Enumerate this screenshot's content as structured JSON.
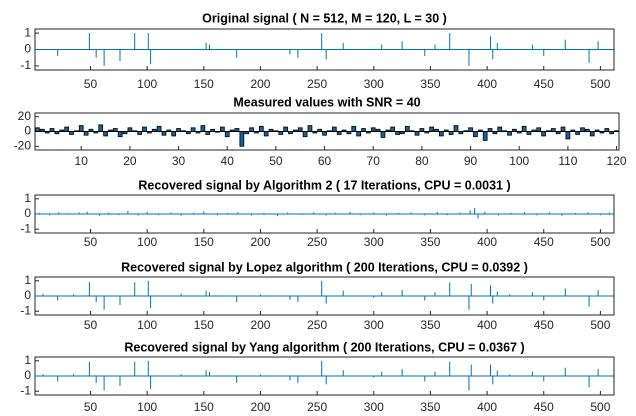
{
  "chart_data": [
    {
      "type": "stem",
      "title": "Original signal ( N = 512, M = 120, L = 30 )",
      "color": "#0072bd",
      "x": [
        21,
        49,
        55,
        62,
        76,
        89,
        101,
        103,
        152,
        155,
        179,
        226,
        233,
        254,
        258,
        273,
        307,
        325,
        345,
        354,
        367,
        384,
        403,
        405,
        409,
        440,
        450,
        469,
        490,
        498
      ],
      "values": [
        -0.4,
        1,
        -0.5,
        -1,
        -0.7,
        1,
        1,
        -0.9,
        0.4,
        0.3,
        -0.5,
        -0.3,
        -0.5,
        1,
        -0.6,
        0.4,
        0.3,
        0.5,
        -0.4,
        0.3,
        1,
        -1,
        0.8,
        -0.6,
        0.4,
        0.3,
        -0.4,
        0.6,
        -0.8,
        0.5
      ],
      "xlim": [
        1,
        512
      ],
      "ylim": [
        -1.25,
        1.25
      ],
      "xticks": [
        50,
        100,
        150,
        200,
        250,
        300,
        350,
        400,
        450,
        500
      ],
      "yticks": [
        1,
        0,
        -1
      ]
    },
    {
      "type": "bar",
      "title": "Measured values with SNR = 40",
      "color": "#1a5f96",
      "x": [
        1,
        2,
        3,
        4,
        5,
        6,
        7,
        8,
        9,
        10,
        11,
        12,
        13,
        14,
        15,
        16,
        17,
        18,
        19,
        20,
        21,
        22,
        23,
        24,
        25,
        26,
        27,
        28,
        29,
        30,
        31,
        32,
        33,
        34,
        35,
        36,
        37,
        38,
        39,
        40,
        41,
        42,
        43,
        44,
        45,
        46,
        47,
        48,
        49,
        50,
        51,
        52,
        53,
        54,
        55,
        56,
        57,
        58,
        59,
        60,
        61,
        62,
        63,
        64,
        65,
        66,
        67,
        68,
        69,
        70,
        71,
        72,
        73,
        74,
        75,
        76,
        77,
        78,
        79,
        80,
        81,
        82,
        83,
        84,
        85,
        86,
        87,
        88,
        89,
        90,
        91,
        92,
        93,
        94,
        95,
        96,
        97,
        98,
        99,
        100,
        101,
        102,
        103,
        104,
        105,
        106,
        107,
        108,
        109,
        110,
        111,
        112,
        113,
        114,
        115,
        116,
        117,
        118,
        119,
        120
      ],
      "values": [
        5,
        3,
        -2,
        4,
        -3,
        2,
        6,
        -4,
        1,
        8,
        -5,
        3,
        -2,
        9,
        -6,
        2,
        4,
        -7,
        -3,
        5,
        1,
        -4,
        6,
        -2,
        3,
        7,
        -5,
        2,
        -6,
        4,
        1,
        -3,
        5,
        -2,
        8,
        -4,
        3,
        -1,
        6,
        -7,
        2,
        4,
        -20,
        -3,
        5,
        -2,
        7,
        -6,
        3,
        1,
        -4,
        6,
        -3,
        2,
        5,
        -7,
        8,
        -2,
        3,
        -5,
        1,
        6,
        -4,
        2,
        -3,
        7,
        -6,
        4,
        -2,
        5,
        3,
        -8,
        2,
        6,
        -4,
        -3,
        7,
        1,
        -5,
        4,
        -2,
        6,
        3,
        -6,
        2,
        -4,
        8,
        -3,
        1,
        5,
        -7,
        2,
        -12,
        4,
        -3,
        6,
        1,
        -5,
        3,
        -2,
        7,
        -4,
        2,
        5,
        -6,
        1,
        4,
        -3,
        6,
        -10,
        2,
        -4,
        5,
        3,
        -6,
        2,
        -2,
        4,
        -3,
        1
      ],
      "xlim": [
        0.5,
        120.5
      ],
      "ylim": [
        -25,
        25
      ],
      "xticks": [
        10,
        20,
        30,
        40,
        50,
        60,
        70,
        80,
        90,
        100,
        110,
        120
      ],
      "yticks": [
        20,
        0,
        -20
      ]
    },
    {
      "type": "stem",
      "title": "Recovered signal by Algorithm 2 ( 17 Iterations, CPU = 0.0031 )",
      "color": "#0072bd",
      "x": [
        5,
        14,
        22,
        31,
        40,
        47,
        58,
        66,
        75,
        83,
        92,
        100,
        110,
        121,
        130,
        141,
        150,
        162,
        171,
        180,
        192,
        203,
        215,
        224,
        236,
        247,
        258,
        266,
        279,
        288,
        300,
        311,
        322,
        333,
        345,
        356,
        365,
        376,
        385,
        389,
        392,
        398,
        410,
        421,
        433,
        444,
        455,
        466,
        478,
        489,
        500,
        508
      ],
      "values": [
        0.08,
        -0.1,
        0.12,
        -0.06,
        0.1,
        0.15,
        -0.12,
        0.09,
        -0.08,
        0.2,
        -0.1,
        0.14,
        -0.07,
        0.1,
        -0.12,
        0.08,
        0.16,
        -0.09,
        0.07,
        0.12,
        -0.1,
        0.08,
        -0.14,
        0.1,
        -0.06,
        0.12,
        -0.1,
        0.09,
        0.14,
        -0.08,
        0.1,
        -0.12,
        0.07,
        0.1,
        -0.09,
        0.13,
        -0.07,
        0.1,
        0.25,
        0.4,
        -0.3,
        0.15,
        -0.1,
        0.08,
        0.12,
        -0.09,
        0.1,
        -0.12,
        0.07,
        0.11,
        -0.08,
        0.09
      ],
      "xlim": [
        1,
        512
      ],
      "ylim": [
        -1.25,
        1.25
      ],
      "xticks": [
        50,
        100,
        150,
        200,
        250,
        300,
        350,
        400,
        450,
        500
      ],
      "yticks": [
        1,
        0,
        -1
      ]
    },
    {
      "type": "stem",
      "title": "Recovered signal by Lopez algorithm ( 200 Iterations, CPU = 0.0392 )",
      "color": "#0072bd",
      "x": [
        8,
        21,
        35,
        49,
        55,
        62,
        76,
        89,
        101,
        103,
        130,
        152,
        155,
        179,
        200,
        226,
        233,
        254,
        258,
        273,
        300,
        307,
        325,
        345,
        354,
        367,
        384,
        386,
        403,
        405,
        409,
        420,
        440,
        450,
        469,
        490,
        498
      ],
      "values": [
        0.15,
        -0.3,
        0.1,
        0.9,
        -0.4,
        -0.9,
        -0.6,
        0.9,
        1,
        -0.8,
        0.15,
        0.35,
        0.25,
        -0.4,
        0.1,
        -0.25,
        -0.4,
        1,
        -0.5,
        0.35,
        -0.12,
        0.25,
        0.4,
        -0.3,
        0.25,
        0.9,
        -0.9,
        0.8,
        0.7,
        -0.5,
        0.3,
        0.12,
        0.25,
        -0.3,
        0.5,
        -0.7,
        0.4
      ],
      "xlim": [
        1,
        512
      ],
      "ylim": [
        -1.25,
        1.25
      ],
      "xticks": [
        50,
        100,
        150,
        200,
        250,
        300,
        350,
        400,
        450,
        500
      ],
      "yticks": [
        1,
        0,
        -1
      ]
    },
    {
      "type": "stem",
      "title": "Recovered signal by Yang algorithm ( 200 Iterations, CPU = 0.0367 )",
      "color": "#0072bd",
      "x": [
        8,
        21,
        35,
        49,
        55,
        62,
        76,
        89,
        101,
        103,
        130,
        152,
        155,
        179,
        200,
        226,
        233,
        254,
        258,
        273,
        300,
        307,
        325,
        345,
        354,
        367,
        384,
        386,
        403,
        405,
        409,
        420,
        440,
        450,
        469,
        490,
        498
      ],
      "values": [
        0.12,
        -0.35,
        0.12,
        0.95,
        -0.45,
        -0.95,
        -0.65,
        0.95,
        1,
        -0.85,
        0.12,
        0.38,
        0.28,
        -0.45,
        0.1,
        -0.28,
        -0.45,
        1,
        -0.55,
        0.38,
        -0.1,
        0.28,
        0.45,
        -0.35,
        0.28,
        0.95,
        -0.95,
        0.75,
        0.75,
        -0.55,
        0.35,
        0.1,
        0.28,
        -0.35,
        0.55,
        -0.75,
        0.45
      ],
      "xlim": [
        1,
        512
      ],
      "ylim": [
        -1.25,
        1.25
      ],
      "xticks": [
        50,
        100,
        150,
        200,
        250,
        300,
        350,
        400,
        450,
        500
      ],
      "yticks": [
        1,
        0,
        -1
      ]
    }
  ]
}
